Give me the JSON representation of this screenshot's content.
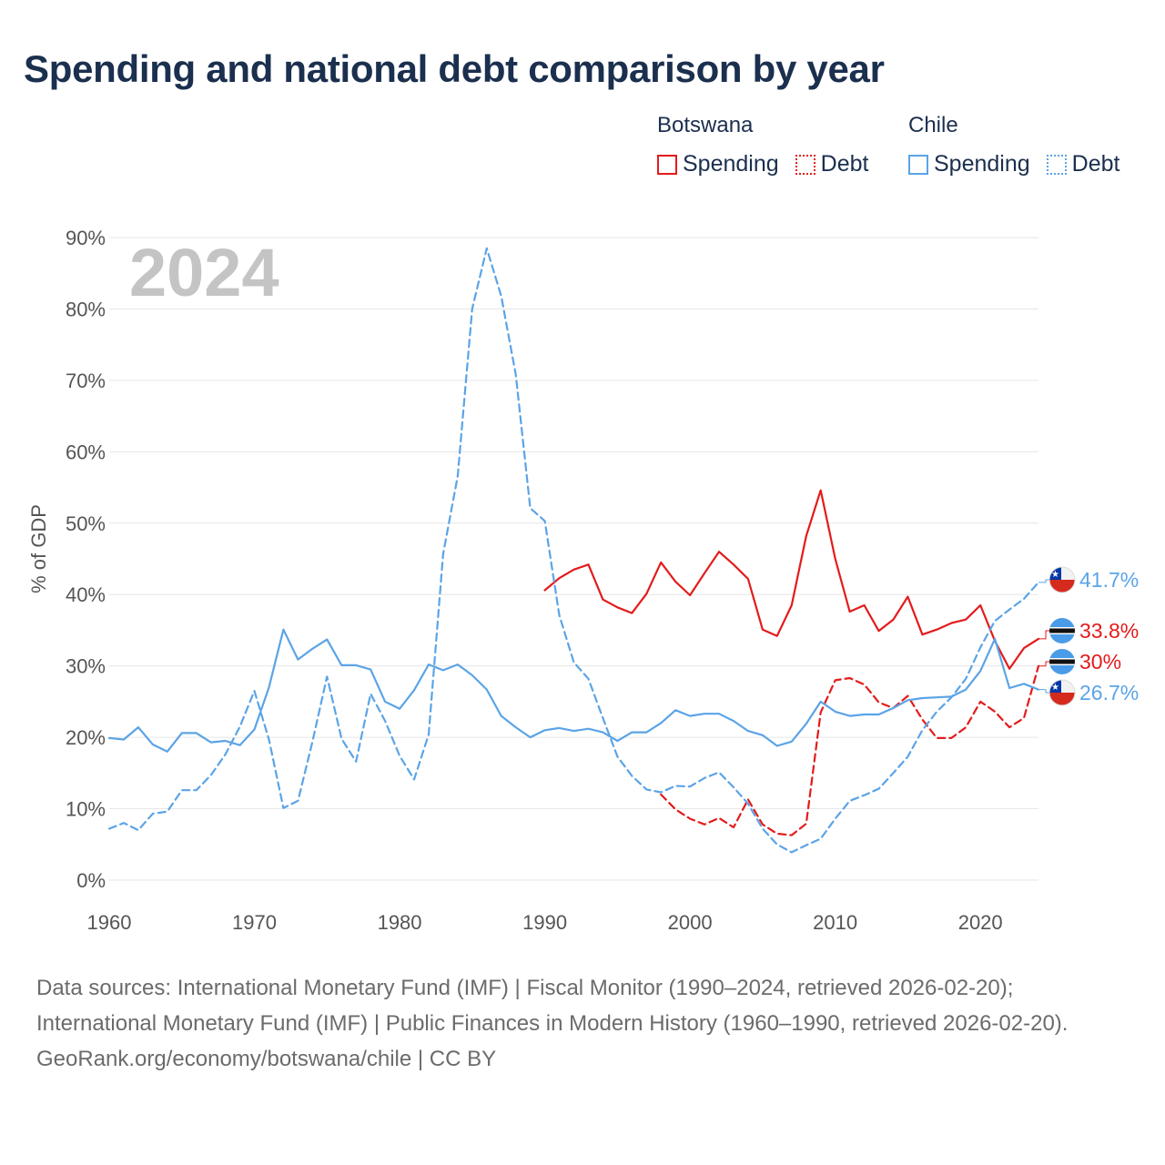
{
  "title": "Spending and national debt comparison by year",
  "legend": {
    "botswana": {
      "name": "Botswana",
      "spending": "Spending",
      "debt": "Debt"
    },
    "chile": {
      "name": "Chile",
      "spending": "Spending",
      "debt": "Debt"
    }
  },
  "footer": {
    "sources": "Data sources: International Monetary Fund (IMF) | Fiscal Monitor (1990–2024, retrieved 2026-02-20); International Monetary Fund (IMF) | Public Finances in Modern History (1960–1990, retrieved 2026-02-20).",
    "credit": "GeoRank.org/economy/botswana/chile | CC BY"
  },
  "colors": {
    "botswana": "#e31b1b",
    "chile": "#5ba4e6",
    "title": "#1b2f4e",
    "grid": "#e6e6e6",
    "year_watermark": "#c4c4c4"
  },
  "chart_data": {
    "type": "line",
    "year_label": "2024",
    "ylabel": "% of GDP",
    "xlim": [
      1960,
      2024
    ],
    "ylim": [
      0,
      90
    ],
    "x_ticks": [
      1960,
      1970,
      1980,
      1990,
      2000,
      2010,
      2020
    ],
    "y_ticks": [
      0,
      10,
      20,
      30,
      40,
      50,
      60,
      70,
      80,
      90
    ],
    "y_tick_labels": [
      "0%",
      "10%",
      "20%",
      "30%",
      "40%",
      "50%",
      "60%",
      "70%",
      "80%",
      "90%"
    ],
    "series": [
      {
        "name": "Botswana Spending",
        "country": "Botswana",
        "metric": "Spending",
        "style": "solid",
        "color": "#e31b1b",
        "end_label": "33.8%",
        "x": [
          1990,
          1991,
          1992,
          1993,
          1994,
          1995,
          1996,
          1997,
          1998,
          1999,
          2000,
          2001,
          2002,
          2003,
          2004,
          2005,
          2006,
          2007,
          2008,
          2009,
          2010,
          2011,
          2012,
          2013,
          2014,
          2015,
          2016,
          2017,
          2018,
          2019,
          2020,
          2021,
          2022,
          2023,
          2024
        ],
        "y": [
          40.6,
          42.3,
          43.5,
          44.2,
          39.3,
          38.2,
          37.4,
          40.1,
          44.5,
          41.8,
          39.9,
          43.0,
          46.0,
          44.2,
          42.2,
          35.1,
          34.2,
          38.5,
          48.2,
          54.6,
          45.0,
          37.6,
          38.5,
          34.9,
          36.5,
          39.7,
          34.4,
          35.1,
          36.0,
          36.5,
          38.5,
          33.5,
          29.6,
          32.5,
          33.8
        ]
      },
      {
        "name": "Botswana Debt",
        "country": "Botswana",
        "metric": "Debt",
        "style": "dashed",
        "color": "#e31b1b",
        "end_label": "30%",
        "x": [
          1998,
          1999,
          2000,
          2001,
          2002,
          2003,
          2004,
          2005,
          2006,
          2007,
          2008,
          2009,
          2010,
          2011,
          2012,
          2013,
          2014,
          2015,
          2016,
          2017,
          2018,
          2019,
          2020,
          2021,
          2022,
          2023,
          2024
        ],
        "y": [
          12.0,
          9.9,
          8.6,
          7.8,
          8.7,
          7.4,
          11.3,
          7.8,
          6.5,
          6.3,
          7.9,
          23.5,
          28.0,
          28.3,
          27.4,
          24.9,
          24.1,
          25.8,
          22.5,
          19.9,
          19.9,
          21.4,
          25.0,
          23.6,
          21.4,
          22.7,
          30.0
        ]
      },
      {
        "name": "Chile Spending",
        "country": "Chile",
        "metric": "Spending",
        "style": "solid",
        "color": "#5ba4e6",
        "end_label": "26.7%",
        "x": [
          1960,
          1961,
          1962,
          1963,
          1964,
          1965,
          1966,
          1967,
          1968,
          1969,
          1970,
          1971,
          1972,
          1973,
          1974,
          1975,
          1976,
          1977,
          1978,
          1979,
          1980,
          1981,
          1982,
          1983,
          1984,
          1985,
          1986,
          1987,
          1988,
          1989,
          1990,
          1991,
          1992,
          1993,
          1994,
          1995,
          1996,
          1997,
          1998,
          1999,
          2000,
          2001,
          2002,
          2003,
          2004,
          2005,
          2006,
          2007,
          2008,
          2009,
          2010,
          2011,
          2012,
          2013,
          2014,
          2015,
          2016,
          2017,
          2018,
          2019,
          2020,
          2021,
          2022,
          2023,
          2024
        ],
        "y": [
          19.9,
          19.7,
          21.4,
          19.0,
          18.0,
          20.6,
          20.6,
          19.3,
          19.5,
          18.9,
          21.1,
          27.0,
          35.1,
          30.9,
          32.4,
          33.7,
          30.1,
          30.1,
          29.5,
          25.0,
          24.0,
          26.6,
          30.2,
          29.4,
          30.2,
          28.7,
          26.7,
          23.0,
          21.4,
          20.0,
          21.0,
          21.3,
          20.9,
          21.2,
          20.7,
          19.5,
          20.7,
          20.7,
          22.0,
          23.8,
          23.0,
          23.3,
          23.3,
          22.3,
          20.9,
          20.3,
          18.8,
          19.4,
          21.9,
          25.0,
          23.6,
          23.0,
          23.2,
          23.2,
          24.1,
          25.2,
          25.5,
          25.6,
          25.7,
          26.7,
          29.3,
          33.8,
          26.9,
          27.5,
          26.7
        ]
      },
      {
        "name": "Chile Debt",
        "country": "Chile",
        "metric": "Debt",
        "style": "dashed",
        "color": "#5ba4e6",
        "end_label": "41.7%",
        "x": [
          1960,
          1961,
          1962,
          1963,
          1964,
          1965,
          1966,
          1967,
          1968,
          1969,
          1970,
          1971,
          1972,
          1973,
          1974,
          1975,
          1976,
          1977,
          1978,
          1979,
          1980,
          1981,
          1982,
          1983,
          1984,
          1985,
          1986,
          1987,
          1988,
          1989,
          1990,
          1991,
          1992,
          1993,
          1994,
          1995,
          1996,
          1997,
          1998,
          1999,
          2000,
          2001,
          2002,
          2003,
          2004,
          2005,
          2006,
          2007,
          2008,
          2009,
          2010,
          2011,
          2012,
          2013,
          2014,
          2015,
          2016,
          2017,
          2018,
          2019,
          2020,
          2021,
          2022,
          2023,
          2024
        ],
        "y": [
          7.2,
          8.0,
          7.0,
          9.3,
          9.6,
          12.6,
          12.6,
          14.7,
          17.6,
          21.5,
          26.5,
          19.7,
          10.1,
          11.1,
          19.4,
          28.5,
          19.8,
          16.6,
          26.1,
          22.3,
          17.4,
          14.1,
          20.4,
          45.7,
          56.6,
          80.0,
          88.5,
          81.8,
          70.8,
          52.1,
          50.3,
          37.1,
          30.5,
          28.2,
          22.7,
          17.3,
          14.6,
          12.7,
          12.3,
          13.2,
          13.1,
          14.3,
          15.1,
          13.0,
          10.7,
          7.2,
          5.0,
          3.9,
          4.9,
          5.8,
          8.6,
          11.1,
          11.9,
          12.8,
          15.0,
          17.3,
          21.0,
          23.6,
          25.6,
          28.2,
          32.6,
          36.3,
          37.9,
          39.4,
          41.7
        ]
      }
    ]
  }
}
